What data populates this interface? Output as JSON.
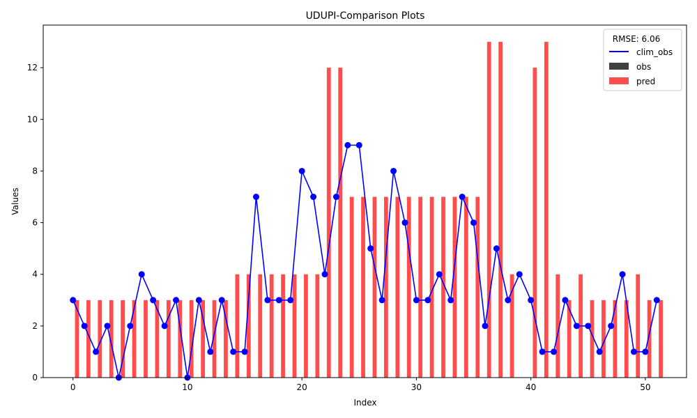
{
  "chart_data": {
    "type": "bar",
    "title": "UDUPI-Comparison Plots",
    "xlabel": "Index",
    "ylabel": "Values",
    "xlim": [
      -2.6,
      53.6
    ],
    "ylim": [
      0,
      13.65
    ],
    "xticks": [
      0,
      10,
      20,
      30,
      40,
      50
    ],
    "yticks": [
      0,
      2,
      4,
      6,
      8,
      10,
      12
    ],
    "grid": false,
    "legend": {
      "title": "RMSE: 6.06",
      "placement": "top-right",
      "entries": [
        "clim_obs",
        "obs",
        "pred"
      ]
    },
    "x": [
      0,
      1,
      2,
      3,
      4,
      5,
      6,
      7,
      8,
      9,
      10,
      11,
      12,
      13,
      14,
      15,
      16,
      17,
      18,
      19,
      20,
      21,
      22,
      23,
      24,
      25,
      26,
      27,
      28,
      29,
      30,
      31,
      32,
      33,
      34,
      35,
      36,
      37,
      38,
      39,
      40,
      41,
      42,
      43,
      44,
      45,
      46,
      47,
      48,
      49,
      50,
      51
    ],
    "series": [
      {
        "name": "clim_obs",
        "kind": "line",
        "color": "#0000ff",
        "values": [
          3,
          2,
          1,
          2,
          0,
          2,
          4,
          3,
          2,
          3,
          0,
          3,
          1,
          3,
          1,
          1,
          7,
          3,
          3,
          3,
          8,
          7,
          4,
          7,
          9,
          9,
          5,
          3,
          8,
          6,
          3,
          3,
          4,
          3,
          7,
          6,
          2,
          5,
          3,
          4,
          3,
          1,
          1,
          3,
          2,
          2,
          1,
          2,
          4,
          1,
          1,
          3
        ]
      },
      {
        "name": "obs",
        "kind": "bar",
        "color": "#404040",
        "values": [
          0,
          0,
          0,
          0,
          0,
          0,
          0,
          0,
          0,
          0,
          0,
          0,
          0,
          0,
          0,
          0,
          0,
          0,
          0,
          0,
          0,
          0,
          0,
          0,
          0,
          0,
          0,
          0,
          0,
          0,
          0,
          0,
          0,
          0,
          0,
          0,
          0,
          0,
          0,
          0,
          0,
          0,
          0,
          0,
          0,
          0,
          0,
          0,
          0,
          0,
          0,
          0
        ]
      },
      {
        "name": "pred",
        "kind": "bar",
        "color": "#ff4d4d",
        "values": [
          3,
          3,
          3,
          3,
          3,
          3,
          3,
          3,
          3,
          3,
          3,
          3,
          3,
          3,
          4,
          4,
          4,
          4,
          4,
          4,
          4,
          4,
          12,
          12,
          7,
          7,
          7,
          7,
          7,
          7,
          7,
          7,
          7,
          7,
          7,
          7,
          13,
          13,
          4,
          0,
          12,
          13,
          4,
          3,
          4,
          3,
          3,
          3,
          3,
          4,
          3,
          3
        ]
      }
    ]
  }
}
